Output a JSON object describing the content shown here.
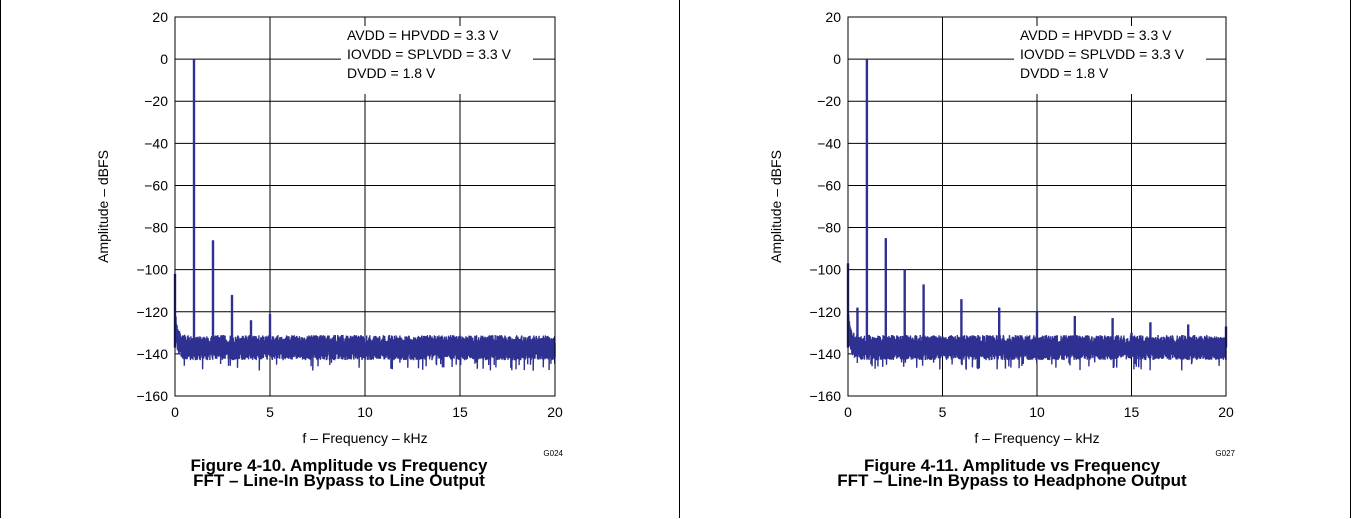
{
  "colors": {
    "trace": "#2E3192",
    "grid": "#000000"
  },
  "chart_data": [
    {
      "type": "line",
      "title": "Figure 4-10. Amplitude vs Frequency",
      "subtitle": "FFT – Line-In Bypass to Line Output",
      "xlabel": "f – Frequency – kHz",
      "ylabel": "Amplitude – dBFS",
      "xlim": [
        0,
        20
      ],
      "ylim": [
        -160,
        20
      ],
      "xticks": [
        0,
        5,
        10,
        15,
        20
      ],
      "yticks": [
        20,
        0,
        -20,
        -40,
        -60,
        -80,
        -100,
        -120,
        -140,
        -160
      ],
      "ytick_labels": [
        "20",
        "0",
        "−20",
        "−40",
        "−60",
        "−80",
        "−100",
        "−120",
        "−140",
        "−160"
      ],
      "grid": true,
      "code": "G024",
      "annotation": [
        "AVDD = HPVDD = 3.3 V",
        "IOVDD = SPLVDD = 3.3 V",
        "DVDD = 1.8 V"
      ],
      "noise_floor": -137,
      "peaks": [
        {
          "x": 0.0,
          "y": -102
        },
        {
          "x": 1.0,
          "y": 0
        },
        {
          "x": 2.0,
          "y": -86
        },
        {
          "x": 3.0,
          "y": -112
        },
        {
          "x": 4.0,
          "y": -124
        },
        {
          "x": 5.0,
          "y": -121
        }
      ]
    },
    {
      "type": "line",
      "title": "Figure 4-11. Amplitude vs Frequency",
      "subtitle": "FFT – Line-In Bypass to Headphone Output",
      "xlabel": "f – Frequency – kHz",
      "ylabel": "Amplitude – dBFS",
      "xlim": [
        0,
        20
      ],
      "ylim": [
        -160,
        20
      ],
      "xticks": [
        0,
        5,
        10,
        15,
        20
      ],
      "yticks": [
        20,
        0,
        -20,
        -40,
        -60,
        -80,
        -100,
        -120,
        -140,
        -160
      ],
      "ytick_labels": [
        "20",
        "0",
        "−20",
        "−40",
        "−60",
        "−80",
        "−100",
        "−120",
        "−140",
        "−160"
      ],
      "grid": true,
      "code": "G027",
      "annotation": [
        "AVDD = HPVDD = 3.3 V",
        "IOVDD = SPLVDD = 3.3 V",
        "DVDD = 1.8 V"
      ],
      "noise_floor": -137,
      "peaks": [
        {
          "x": 0.0,
          "y": -97
        },
        {
          "x": 0.5,
          "y": -118
        },
        {
          "x": 1.0,
          "y": 0
        },
        {
          "x": 2.0,
          "y": -85
        },
        {
          "x": 3.0,
          "y": -100
        },
        {
          "x": 4.0,
          "y": -107
        },
        {
          "x": 6.0,
          "y": -114
        },
        {
          "x": 8.0,
          "y": -118
        },
        {
          "x": 10.0,
          "y": -120
        },
        {
          "x": 12.0,
          "y": -122
        },
        {
          "x": 14.0,
          "y": -123
        },
        {
          "x": 15.0,
          "y": -130
        },
        {
          "x": 16.0,
          "y": -125
        },
        {
          "x": 18.0,
          "y": -126
        },
        {
          "x": 20.0,
          "y": -127
        }
      ]
    }
  ]
}
